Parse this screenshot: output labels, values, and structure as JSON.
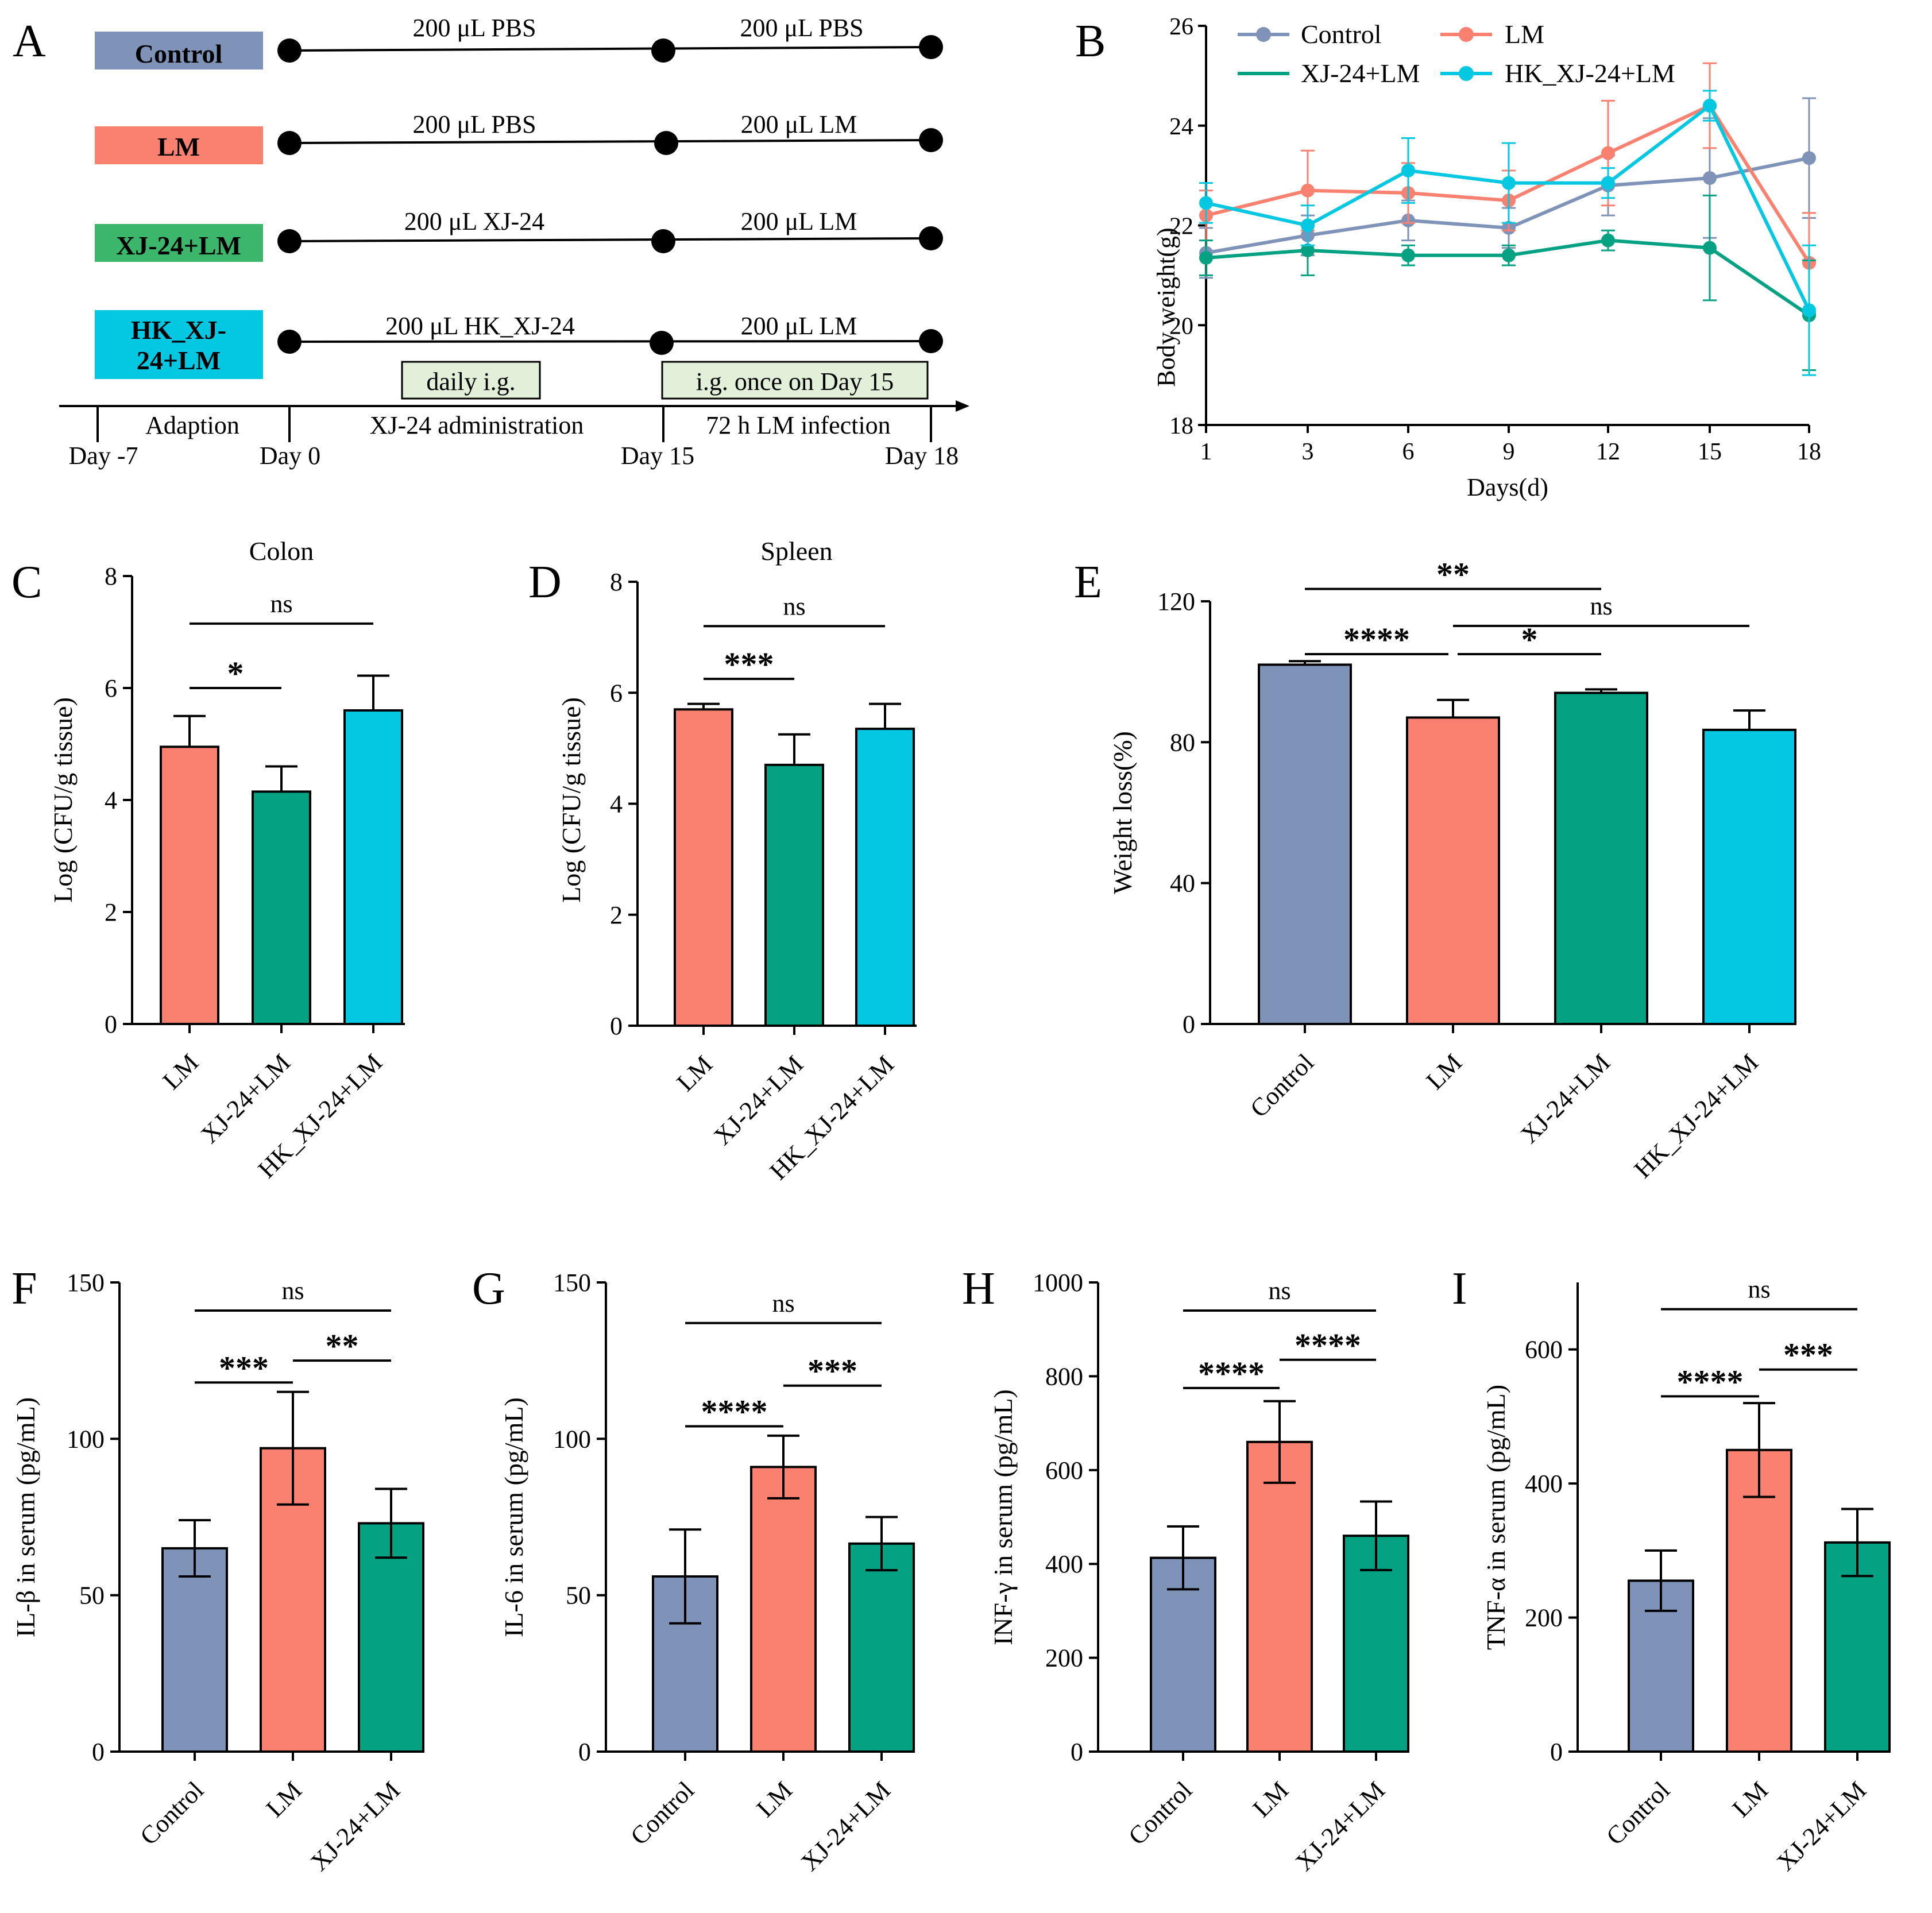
{
  "colors": {
    "control": "#7f93b9",
    "lm": "#fa8070",
    "xj": "#04a283",
    "hk": "#04c7e1"
  },
  "panel_a": {
    "letter": "A",
    "groups": [
      {
        "key": "control",
        "label": "Control",
        "first": "200 μL PBS",
        "second": "200 μL PBS"
      },
      {
        "key": "lm",
        "label": "LM",
        "first": "200 μL PBS",
        "second": "200 μL LM"
      },
      {
        "key": "xj",
        "label": "XJ-24+LM",
        "first": "200 μL XJ-24",
        "second": "200 μL LM"
      },
      {
        "key": "hk",
        "label": "HK_XJ-24+LM",
        "first": "200 μL HK_XJ-24",
        "second": "200 μL LM"
      }
    ],
    "box_daily": "daily i.g.",
    "box_once": "i.g. once on Day 15",
    "phases": [
      "Adaption",
      "XJ-24 administration",
      "72 h LM infection"
    ],
    "days": [
      "Day -7",
      "Day 0",
      "Day 15",
      "Day 18"
    ]
  },
  "chart_data": [
    {
      "id": "B",
      "letter": "B",
      "type": "line",
      "title": "",
      "xlabel": "Days(d)",
      "ylabel": "Body weight(g)",
      "x": [
        1,
        3,
        6,
        9,
        12,
        15,
        18
      ],
      "ylim": [
        18,
        26
      ],
      "yticks": [
        18,
        20,
        22,
        24,
        26
      ],
      "series": [
        {
          "name": "Control",
          "key": "control",
          "values": [
            21.45,
            21.8,
            22.1,
            21.95,
            22.8,
            22.95,
            23.35
          ],
          "err": [
            0.5,
            0.4,
            0.4,
            0.4,
            0.6,
            1.2,
            1.2
          ]
        },
        {
          "name": "LM",
          "key": "lm",
          "values": [
            22.2,
            22.7,
            22.65,
            22.5,
            23.45,
            24.4,
            21.25
          ],
          "err": [
            0.5,
            0.8,
            0.6,
            0.6,
            1.05,
            0.85,
            1.0
          ]
        },
        {
          "name": "XJ-24+LM",
          "key": "xj",
          "values": [
            21.35,
            21.5,
            21.4,
            21.4,
            21.7,
            21.55,
            20.2
          ],
          "err": [
            0.35,
            0.5,
            0.2,
            0.2,
            0.2,
            1.05,
            1.1
          ]
        },
        {
          "name": "HK_XJ-24+LM",
          "key": "hk",
          "values": [
            22.45,
            22.0,
            23.1,
            22.85,
            22.85,
            24.4,
            20.3
          ],
          "err": [
            0.4,
            0.4,
            0.65,
            0.8,
            0.3,
            0.3,
            1.3
          ]
        }
      ]
    },
    {
      "id": "C",
      "letter": "C",
      "type": "bar",
      "title": "Colon",
      "ylabel": "Log (CFU/g tissue)",
      "categories": [
        "LM",
        "XJ-24+LM",
        "HK_XJ-24+LM"
      ],
      "keys": [
        "lm",
        "xj",
        "hk"
      ],
      "values": [
        4.95,
        4.15,
        5.6
      ],
      "err": [
        0.55,
        0.45,
        0.62
      ],
      "ylim": [
        0,
        8
      ],
      "yticks": [
        0,
        2,
        4,
        6,
        8
      ],
      "sig": [
        {
          "from": 0,
          "to": 1,
          "label": "*",
          "y": 6.0
        },
        {
          "from": 0,
          "to": 2,
          "label": "ns",
          "y": 7.15
        }
      ]
    },
    {
      "id": "D",
      "letter": "D",
      "type": "bar",
      "title": "Spleen",
      "ylabel": "Log (CFU/g tissue)",
      "categories": [
        "LM",
        "XJ-24+LM",
        "HK_XJ-24+LM"
      ],
      "keys": [
        "lm",
        "xj",
        "hk"
      ],
      "values": [
        5.7,
        4.7,
        5.35
      ],
      "err": [
        0.1,
        0.55,
        0.45
      ],
      "ylim": [
        0,
        8
      ],
      "yticks": [
        0,
        2,
        4,
        6,
        8
      ],
      "sig": [
        {
          "from": 0,
          "to": 1,
          "label": "***",
          "y": 6.25
        },
        {
          "from": 0,
          "to": 2,
          "label": "ns",
          "y": 7.2
        }
      ]
    },
    {
      "id": "E",
      "letter": "E",
      "type": "bar",
      "title": "",
      "ylabel": "Weight loss(%)",
      "categories": [
        "Control",
        "LM",
        "XJ-24+LM",
        "HK_XJ-24+LM"
      ],
      "keys": [
        "control",
        "lm",
        "xj",
        "hk"
      ],
      "values": [
        102,
        87,
        94,
        83.5
      ],
      "err": [
        1.0,
        5.0,
        1.0,
        5.5
      ],
      "ylim": [
        0,
        120
      ],
      "yticks": [
        0,
        40,
        80,
        120
      ],
      "sig": [
        {
          "from": 0,
          "to": 2,
          "label": "**",
          "y": 123.5
        },
        {
          "from": 1,
          "to": 3,
          "label": "ns",
          "y": 113
        },
        {
          "from": 0,
          "to": 1,
          "label": "****",
          "y": 105
        },
        {
          "from": 1,
          "to": 2,
          "label": "*",
          "y": 105
        }
      ]
    },
    {
      "id": "F",
      "letter": "F",
      "type": "bar",
      "title": "",
      "ylabel": "IL-β in serum (pg/mL)",
      "categories": [
        "Control",
        "LM",
        "XJ-24+LM"
      ],
      "keys": [
        "control",
        "lm",
        "xj"
      ],
      "values": [
        65,
        97,
        73
      ],
      "err": [
        9,
        18,
        11
      ],
      "ylim": [
        0,
        150
      ],
      "yticks": [
        0,
        50,
        100,
        150
      ],
      "sig": [
        {
          "from": 0,
          "to": 2,
          "label": "ns",
          "y": 141
        },
        {
          "from": 0,
          "to": 1,
          "label": "***",
          "y": 118
        },
        {
          "from": 1,
          "to": 2,
          "label": "**",
          "y": 125
        }
      ]
    },
    {
      "id": "G",
      "letter": "G",
      "type": "bar",
      "title": "",
      "ylabel": "IL-6 in serum (pg/mL)",
      "categories": [
        "Control",
        "LM",
        "XJ-24+LM"
      ],
      "keys": [
        "control",
        "lm",
        "xj"
      ],
      "values": [
        56,
        91,
        66.5
      ],
      "err": [
        15,
        10,
        8.5
      ],
      "ylim": [
        0,
        150
      ],
      "yticks": [
        0,
        50,
        100,
        150
      ],
      "sig": [
        {
          "from": 0,
          "to": 2,
          "label": "ns",
          "y": 137
        },
        {
          "from": 0,
          "to": 1,
          "label": "****",
          "y": 104
        },
        {
          "from": 1,
          "to": 2,
          "label": "***",
          "y": 117
        }
      ]
    },
    {
      "id": "H",
      "letter": "H",
      "type": "bar",
      "title": "",
      "ylabel": "INF-γ in serum (pg/mL)",
      "categories": [
        "Control",
        "LM",
        "XJ-24+LM"
      ],
      "keys": [
        "control",
        "lm",
        "xj"
      ],
      "values": [
        413,
        660,
        460
      ],
      "err": [
        67,
        87,
        73
      ],
      "ylim": [
        0,
        1000
      ],
      "yticks": [
        0,
        200,
        400,
        600,
        800,
        1000
      ],
      "sig": [
        {
          "from": 0,
          "to": 2,
          "label": "ns",
          "y": 940
        },
        {
          "from": 0,
          "to": 1,
          "label": "****",
          "y": 775
        },
        {
          "from": 1,
          "to": 2,
          "label": "****",
          "y": 835
        }
      ]
    },
    {
      "id": "I",
      "letter": "I",
      "type": "bar",
      "title": "",
      "ylabel": "TNF-α in serum (pg/mL)",
      "categories": [
        "Control",
        "LM",
        "XJ-24+LM"
      ],
      "keys": [
        "control",
        "lm",
        "xj"
      ],
      "values": [
        255,
        450,
        312
      ],
      "err": [
        45,
        70,
        50
      ],
      "ylim": [
        0,
        700
      ],
      "yticks": [
        0,
        200,
        400,
        600
      ],
      "sig": [
        {
          "from": 0,
          "to": 2,
          "label": "ns",
          "y": 660
        },
        {
          "from": 0,
          "to": 1,
          "label": "****",
          "y": 530
        },
        {
          "from": 1,
          "to": 2,
          "label": "***",
          "y": 570
        }
      ]
    }
  ]
}
